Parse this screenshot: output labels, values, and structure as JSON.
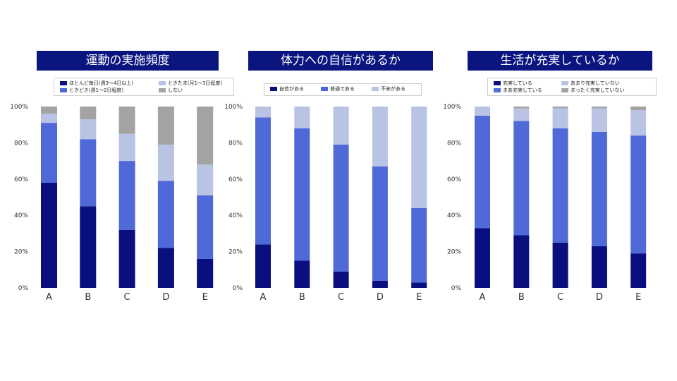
{
  "chart_data": [
    {
      "type": "bar",
      "stacked": true,
      "title": "運動の実施頻度",
      "categories": [
        "A",
        "B",
        "C",
        "D",
        "E"
      ],
      "yticks": [
        "0%",
        "20%",
        "40%",
        "60%",
        "80%",
        "100%"
      ],
      "ylim": [
        0,
        100
      ],
      "legend_position": "top",
      "series": [
        {
          "name": "ほとんど毎日(週3～4日以上)",
          "color": "#0a0f80",
          "values": [
            58,
            45,
            32,
            22,
            16
          ]
        },
        {
          "name": "ときどき(週1～2日程度)",
          "color": "#4f69d9",
          "values": [
            33,
            37,
            38,
            37,
            35
          ]
        },
        {
          "name": "ときたま(月1～3日程度)",
          "color": "#b9c3e3",
          "values": [
            5,
            11,
            15,
            20,
            17
          ]
        },
        {
          "name": "しない",
          "color": "#a3a3a3",
          "values": [
            4,
            7,
            15,
            21,
            32
          ]
        }
      ]
    },
    {
      "type": "bar",
      "stacked": true,
      "title": "体力への自信があるか",
      "categories": [
        "A",
        "B",
        "C",
        "D",
        "E"
      ],
      "yticks": [
        "0%",
        "20%",
        "40%",
        "60%",
        "80%",
        "100%"
      ],
      "ylim": [
        0,
        100
      ],
      "legend_position": "top",
      "series": [
        {
          "name": "自信がある",
          "color": "#0a0f80",
          "values": [
            24,
            15,
            9,
            4,
            3
          ]
        },
        {
          "name": "普通である",
          "color": "#4f69d9",
          "values": [
            70,
            73,
            70,
            63,
            41
          ]
        },
        {
          "name": "不安がある",
          "color": "#b9c3e3",
          "values": [
            6,
            12,
            21,
            33,
            56
          ]
        }
      ]
    },
    {
      "type": "bar",
      "stacked": true,
      "title": "生活が充実しているか",
      "categories": [
        "A",
        "B",
        "C",
        "D",
        "E"
      ],
      "yticks": [
        "0%",
        "20%",
        "40%",
        "60%",
        "80%",
        "100%"
      ],
      "ylim": [
        0,
        100
      ],
      "legend_position": "top",
      "series": [
        {
          "name": "充実している",
          "color": "#0a0f80",
          "values": [
            33,
            29,
            25,
            23,
            19
          ]
        },
        {
          "name": "まあ充実している",
          "color": "#4f69d9",
          "values": [
            62,
            63,
            63,
            63,
            65
          ]
        },
        {
          "name": "あまり充実していない",
          "color": "#b9c3e3",
          "values": [
            5,
            7,
            11,
            13,
            14
          ]
        },
        {
          "name": "まったく充実していない",
          "color": "#a3a3a3",
          "values": [
            0,
            1,
            1,
            1,
            2
          ]
        }
      ]
    }
  ]
}
